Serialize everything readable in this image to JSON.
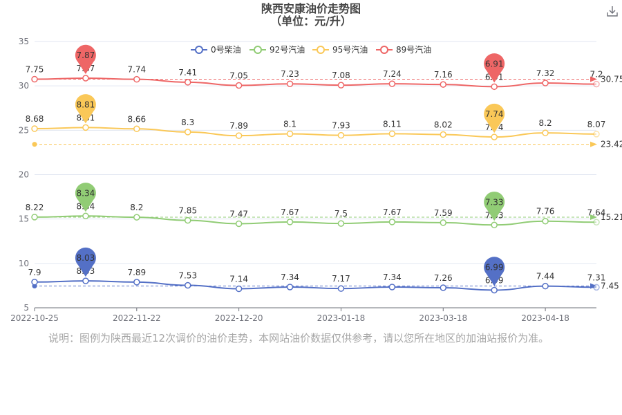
{
  "title": "陕西安康油价走势图",
  "subtitle": "（单位：元/升）",
  "note": "说明：图例为陕西最近12次调价的油价走势，本网站油价数据仅供参考，请以您所在地区的加油站报价为准。",
  "colors": {
    "axis": "#6e7079",
    "grid": "#e0e6f1",
    "title": "#464646",
    "note": "#a7a7a7"
  },
  "icons": {
    "download": "download-icon"
  },
  "chart_data": {
    "type": "line",
    "x_tick_labels": [
      "2022-10-25",
      "2022-11-22",
      "2022-12-20",
      "2023-01-18",
      "2023-03-18",
      "2023-04-18"
    ],
    "x_tick_positions": [
      0,
      2,
      4,
      6,
      8,
      10
    ],
    "ylim": [
      5,
      35
    ],
    "y_ticks": [
      5,
      10,
      15,
      20,
      25,
      30,
      35
    ],
    "grid": true,
    "legend_position": "top-center",
    "series": [
      {
        "name": "0号柴油",
        "color": "#5470c6",
        "values": [
          7.9,
          8.03,
          7.89,
          7.53,
          7.14,
          7.34,
          7.17,
          7.34,
          7.26,
          6.99,
          7.44,
          7.31
        ],
        "offset": 0,
        "average": 7.45,
        "max_label": "8.03",
        "min_label": "6.99"
      },
      {
        "name": "92号汽油",
        "color": "#91cc75",
        "values": [
          8.22,
          8.34,
          8.2,
          7.85,
          7.47,
          7.67,
          7.5,
          7.67,
          7.59,
          7.33,
          7.76,
          7.64
        ],
        "offset": 7,
        "average": 15.21,
        "max_label": "8.34",
        "min_label": "7.33"
      },
      {
        "name": "95号汽油",
        "color": "#fac858",
        "values": [
          8.68,
          8.81,
          8.66,
          8.3,
          7.89,
          8.1,
          7.93,
          8.11,
          8.02,
          7.74,
          8.2,
          8.07
        ],
        "offset": 16.5,
        "average": 23.42,
        "max_label": "8.81",
        "min_label": "7.74"
      },
      {
        "name": "89号汽油",
        "color": "#ee6666",
        "values": [
          7.75,
          7.87,
          7.74,
          7.41,
          7.05,
          7.23,
          7.08,
          7.24,
          7.16,
          6.91,
          7.32,
          7.2
        ],
        "offset": 23,
        "average": 30.75,
        "max_label": "7.87",
        "min_label": "6.91"
      }
    ]
  }
}
